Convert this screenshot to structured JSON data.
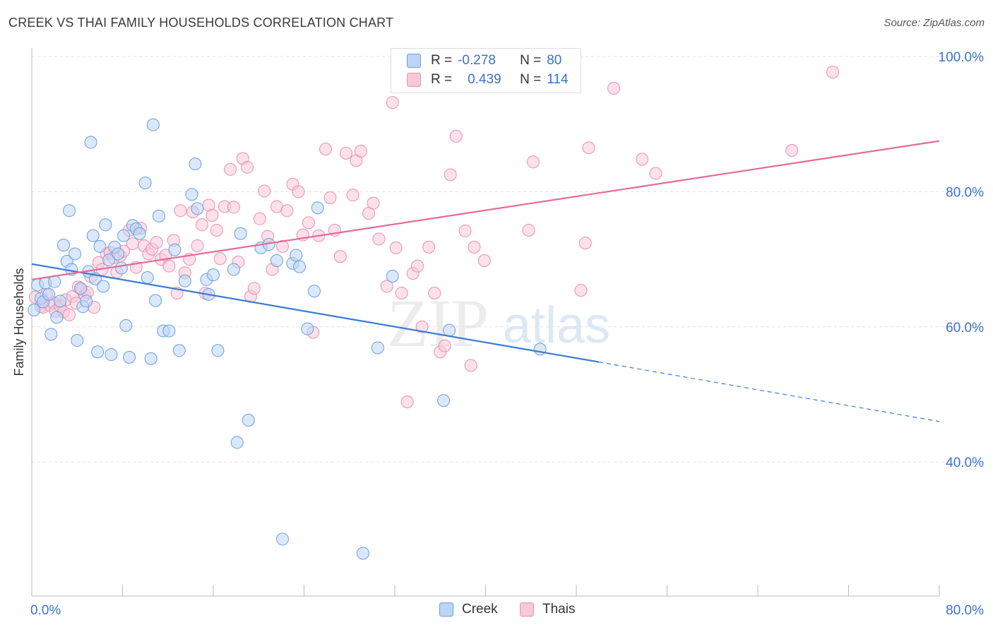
{
  "title": "CREEK VS THAI FAMILY HOUSEHOLDS CORRELATION CHART",
  "source": "Source: ZipAtlas.com",
  "watermark": {
    "zip": "ZIP",
    "atlas": "atlas"
  },
  "colors": {
    "creek": "#3a7bd5",
    "thais": "#e56a98",
    "creek_fill": "#bcd5f5",
    "thais_fill": "#f9c8d8",
    "axis_label": "#3a73c9",
    "grid": "#e0e0e0"
  },
  "legend": {
    "creek": {
      "r_label": "R =",
      "r_value": "-0.278",
      "n_label": "N =",
      "n_value": "80"
    },
    "thais": {
      "r_label": "R =",
      "r_value": "0.439",
      "n_label": "N =",
      "n_value": "114"
    }
  },
  "bottom_legend": {
    "creek": "Creek",
    "thais": "Thais"
  },
  "chart_data": {
    "type": "scatter",
    "title": "CREEK VS THAI FAMILY HOUSEHOLDS CORRELATION CHART",
    "xlabel": "",
    "ylabel": "Family Households",
    "xlim": [
      0,
      80
    ],
    "ylim": [
      20,
      104
    ],
    "x_tick_labels": [
      "0.0%",
      "80.0%"
    ],
    "y_ticks": [
      40,
      60,
      80,
      100
    ],
    "y_tick_labels": [
      "40.0%",
      "60.0%",
      "80.0%",
      "100.0%"
    ],
    "grid": true,
    "legend_position": "top-center",
    "series": [
      {
        "name": "Creek",
        "r": -0.278,
        "n": 80,
        "trend": {
          "x0": 0,
          "y0": 69.3,
          "x1": 50,
          "y1": 54.8,
          "dashed_to_x": 80,
          "dashed_to_y": 46.0
        },
        "points": [
          [
            0.2,
            62.5
          ],
          [
            0.5,
            66.2
          ],
          [
            0.8,
            64.2
          ],
          [
            1.0,
            63.7
          ],
          [
            1.2,
            66.5
          ],
          [
            1.5,
            64.8
          ],
          [
            1.7,
            58.9
          ],
          [
            2.0,
            66.7
          ],
          [
            2.2,
            61.4
          ],
          [
            2.5,
            63.8
          ],
          [
            2.8,
            72.1
          ],
          [
            3.1,
            69.7
          ],
          [
            3.3,
            77.2
          ],
          [
            3.5,
            68.5
          ],
          [
            3.8,
            70.8
          ],
          [
            4.0,
            58.0
          ],
          [
            4.3,
            65.7
          ],
          [
            4.5,
            63.0
          ],
          [
            4.8,
            63.8
          ],
          [
            5.0,
            68.2
          ],
          [
            5.2,
            87.3
          ],
          [
            5.4,
            73.5
          ],
          [
            5.6,
            67.1
          ],
          [
            5.8,
            56.3
          ],
          [
            6.0,
            71.9
          ],
          [
            6.3,
            66.0
          ],
          [
            6.5,
            75.1
          ],
          [
            6.8,
            69.9
          ],
          [
            7.0,
            55.9
          ],
          [
            7.3,
            71.8
          ],
          [
            7.6,
            70.8
          ],
          [
            7.9,
            68.7
          ],
          [
            8.1,
            73.5
          ],
          [
            8.3,
            60.2
          ],
          [
            8.6,
            55.5
          ],
          [
            8.9,
            75.0
          ],
          [
            9.2,
            74.5
          ],
          [
            9.5,
            73.8
          ],
          [
            10.0,
            81.3
          ],
          [
            10.2,
            67.3
          ],
          [
            10.5,
            55.3
          ],
          [
            10.7,
            89.9
          ],
          [
            10.9,
            63.9
          ],
          [
            11.2,
            76.4
          ],
          [
            11.6,
            59.4
          ],
          [
            12.1,
            59.4
          ],
          [
            12.6,
            71.4
          ],
          [
            13.0,
            56.5
          ],
          [
            13.5,
            66.8
          ],
          [
            14.1,
            79.6
          ],
          [
            14.4,
            84.1
          ],
          [
            14.6,
            77.5
          ],
          [
            15.4,
            67.0
          ],
          [
            15.6,
            64.8
          ],
          [
            16.0,
            67.7
          ],
          [
            16.4,
            56.5
          ],
          [
            17.8,
            68.5
          ],
          [
            18.1,
            42.9
          ],
          [
            18.4,
            73.8
          ],
          [
            19.1,
            46.2
          ],
          [
            20.2,
            71.7
          ],
          [
            20.9,
            72.2
          ],
          [
            21.6,
            69.8
          ],
          [
            22.1,
            28.6
          ],
          [
            23.0,
            69.4
          ],
          [
            23.3,
            70.6
          ],
          [
            23.6,
            68.9
          ],
          [
            24.3,
            59.7
          ],
          [
            24.9,
            65.3
          ],
          [
            25.2,
            77.6
          ],
          [
            29.2,
            26.5
          ],
          [
            30.5,
            56.9
          ],
          [
            31.8,
            67.5
          ],
          [
            36.3,
            49.1
          ],
          [
            36.8,
            59.5
          ],
          [
            44.8,
            56.7
          ]
        ]
      },
      {
        "name": "Thais",
        "r": 0.439,
        "n": 114,
        "trend": {
          "x0": 0,
          "y0": 67.0,
          "x1": 80,
          "y1": 87.5
        },
        "points": [
          [
            0.3,
            64.4
          ],
          [
            0.8,
            63.0
          ],
          [
            1.0,
            62.9
          ],
          [
            1.3,
            64.8
          ],
          [
            1.6,
            63.2
          ],
          [
            1.9,
            63.6
          ],
          [
            2.1,
            62.3
          ],
          [
            2.5,
            63.1
          ],
          [
            2.8,
            62.2
          ],
          [
            3.0,
            64.0
          ],
          [
            3.3,
            61.8
          ],
          [
            3.6,
            64.5
          ],
          [
            3.9,
            63.5
          ],
          [
            4.1,
            65.9
          ],
          [
            4.4,
            65.5
          ],
          [
            4.7,
            64.7
          ],
          [
            4.9,
            65.1
          ],
          [
            5.2,
            67.4
          ],
          [
            5.5,
            62.9
          ],
          [
            5.9,
            69.5
          ],
          [
            6.2,
            68.5
          ],
          [
            6.6,
            70.8
          ],
          [
            6.9,
            71.0
          ],
          [
            7.2,
            70.2
          ],
          [
            7.5,
            68.1
          ],
          [
            7.8,
            70.5
          ],
          [
            8.1,
            71.2
          ],
          [
            8.6,
            74.3
          ],
          [
            8.9,
            72.3
          ],
          [
            9.2,
            68.8
          ],
          [
            9.6,
            74.6
          ],
          [
            9.9,
            72.0
          ],
          [
            10.3,
            70.8
          ],
          [
            10.6,
            71.5
          ],
          [
            11.0,
            72.5
          ],
          [
            11.4,
            70.0
          ],
          [
            11.8,
            70.6
          ],
          [
            12.1,
            69.0
          ],
          [
            12.5,
            72.8
          ],
          [
            12.8,
            65.0
          ],
          [
            13.1,
            77.2
          ],
          [
            13.5,
            68.0
          ],
          [
            13.9,
            70.0
          ],
          [
            14.2,
            77.0
          ],
          [
            14.6,
            72.0
          ],
          [
            15.0,
            75.1
          ],
          [
            15.3,
            65.0
          ],
          [
            15.6,
            78.0
          ],
          [
            15.9,
            76.5
          ],
          [
            16.3,
            74.3
          ],
          [
            16.6,
            70.1
          ],
          [
            17.0,
            77.8
          ],
          [
            17.5,
            83.3
          ],
          [
            17.8,
            77.7
          ],
          [
            18.2,
            69.6
          ],
          [
            18.6,
            84.9
          ],
          [
            19.0,
            83.6
          ],
          [
            19.3,
            64.5
          ],
          [
            19.6,
            65.7
          ],
          [
            20.1,
            76.0
          ],
          [
            20.5,
            80.1
          ],
          [
            20.8,
            73.4
          ],
          [
            21.2,
            68.5
          ],
          [
            21.6,
            77.8
          ],
          [
            22.1,
            71.9
          ],
          [
            22.5,
            77.2
          ],
          [
            23.0,
            81.1
          ],
          [
            23.5,
            80.0
          ],
          [
            23.9,
            73.6
          ],
          [
            24.4,
            75.4
          ],
          [
            24.8,
            59.2
          ],
          [
            25.3,
            73.5
          ],
          [
            25.9,
            86.3
          ],
          [
            26.3,
            79.1
          ],
          [
            26.7,
            74.3
          ],
          [
            27.2,
            70.4
          ],
          [
            27.7,
            85.7
          ],
          [
            28.3,
            79.5
          ],
          [
            28.6,
            84.6
          ],
          [
            29.0,
            86.0
          ],
          [
            29.7,
            76.8
          ],
          [
            30.1,
            78.3
          ],
          [
            30.6,
            73.0
          ],
          [
            31.3,
            66.0
          ],
          [
            31.8,
            93.2
          ],
          [
            32.1,
            71.7
          ],
          [
            32.6,
            65.0
          ],
          [
            33.1,
            48.9
          ],
          [
            33.6,
            67.9
          ],
          [
            34.0,
            69.0
          ],
          [
            34.4,
            60.0
          ],
          [
            35.0,
            71.8
          ],
          [
            35.5,
            65.0
          ],
          [
            36.0,
            56.3
          ],
          [
            36.4,
            57.2
          ],
          [
            36.9,
            82.5
          ],
          [
            37.4,
            88.2
          ],
          [
            38.2,
            74.2
          ],
          [
            38.7,
            54.3
          ],
          [
            39.0,
            71.8
          ],
          [
            39.9,
            69.8
          ],
          [
            43.8,
            74.3
          ],
          [
            44.2,
            84.4
          ],
          [
            48.4,
            65.4
          ],
          [
            48.8,
            72.4
          ],
          [
            49.1,
            86.5
          ],
          [
            51.3,
            95.3
          ],
          [
            53.8,
            84.8
          ],
          [
            55.0,
            82.7
          ],
          [
            67.0,
            86.1
          ],
          [
            70.6,
            97.7
          ]
        ]
      }
    ]
  }
}
